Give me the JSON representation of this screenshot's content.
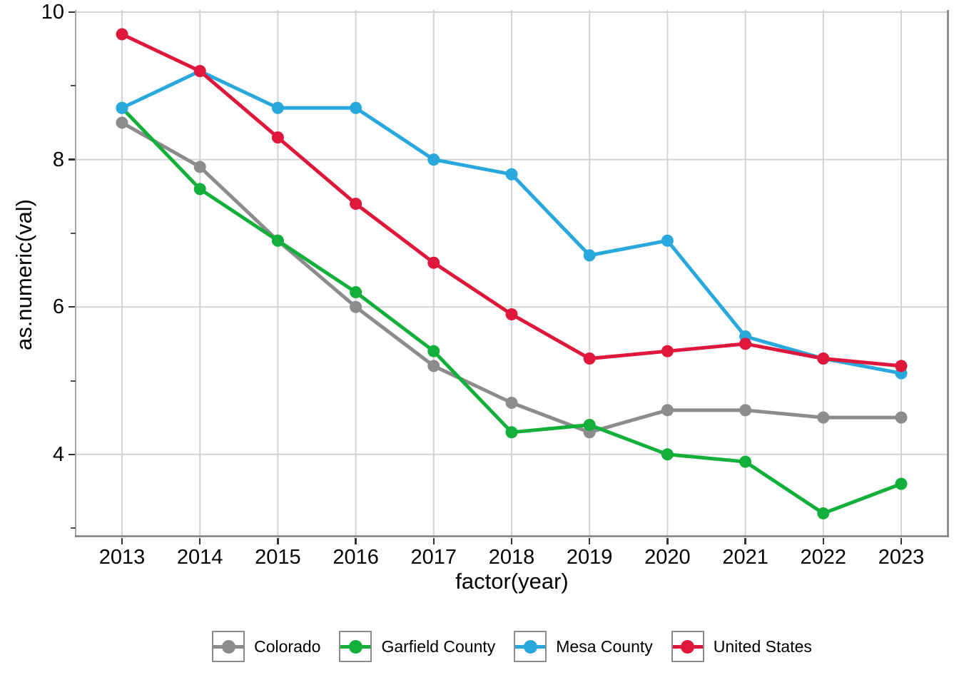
{
  "chart_data": {
    "type": "line",
    "title": "",
    "xlabel": "factor(year)",
    "ylabel": "as.numeric(val)",
    "categories": [
      "2013",
      "2014",
      "2015",
      "2016",
      "2017",
      "2018",
      "2019",
      "2020",
      "2021",
      "2022",
      "2023"
    ],
    "series": [
      {
        "name": "Colorado",
        "color": "#8C8C8C",
        "values": [
          8.5,
          7.9,
          6.9,
          6.0,
          5.2,
          4.7,
          4.3,
          4.6,
          4.6,
          4.5,
          4.5
        ]
      },
      {
        "name": "Garfield County",
        "color": "#12B03A",
        "values": [
          8.7,
          7.6,
          6.9,
          6.2,
          5.4,
          4.3,
          4.4,
          4.0,
          3.9,
          3.2,
          3.6
        ]
      },
      {
        "name": "Mesa County",
        "color": "#28A8DC",
        "values": [
          8.7,
          9.2,
          8.7,
          8.7,
          8.0,
          7.8,
          6.7,
          6.9,
          5.6,
          5.3,
          5.1
        ]
      },
      {
        "name": "United States",
        "color": "#E0173D",
        "values": [
          9.7,
          9.2,
          8.3,
          7.4,
          6.6,
          5.9,
          5.3,
          5.4,
          5.5,
          5.3,
          5.2
        ]
      }
    ],
    "y_ticks": [
      4,
      6,
      8,
      10
    ],
    "y_minor_ticks": [
      3,
      5,
      7,
      9
    ],
    "ylim": [
      2.9,
      10.05
    ],
    "grid": "major x and y, light gray, white background",
    "legend_position": "bottom"
  },
  "colors": {
    "background": "#FFFFFF",
    "gridline": "#D4D4D4",
    "axis_line_left": "#A6A6A6",
    "axis_line_bottom_right": "#7E7E7E",
    "tick_mark": "#333333",
    "text": "#000000",
    "legend_key_border": "#8C8C8C"
  }
}
